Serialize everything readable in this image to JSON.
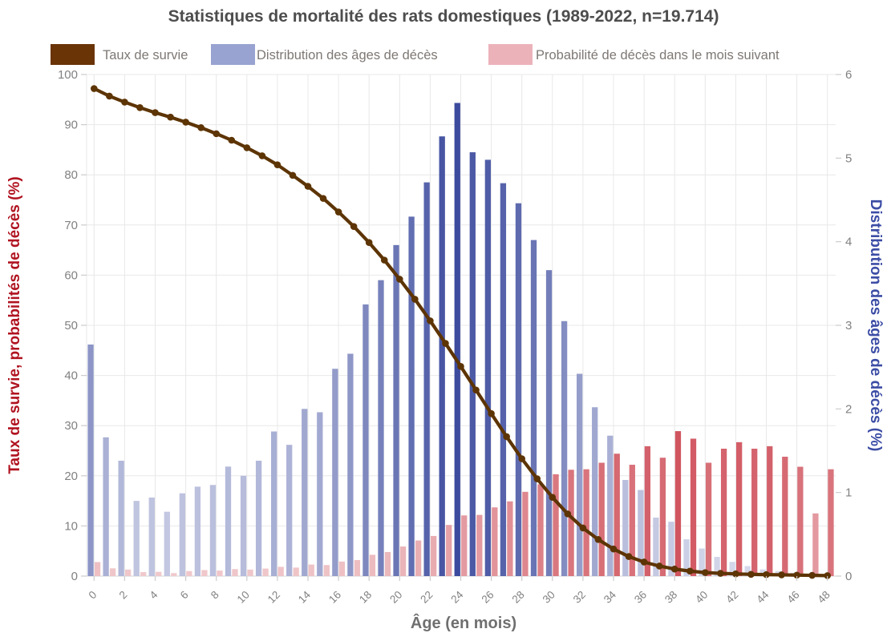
{
  "title": "Statistiques de mortalité des rats domestiques (1989-2022, n=19.714)",
  "legend": [
    {
      "label": "Taux de survie",
      "swatch_color": "#6a3407"
    },
    {
      "label": "Distribution des âges de décès",
      "swatch_color": "#99a3d1"
    },
    {
      "label": "Probabilité de décès dans le mois suivant",
      "swatch_color": "#ecb2ba"
    }
  ],
  "axes": {
    "left": {
      "label": "Taux de survie, probabilités de décès (%)",
      "color": "#b01320",
      "ticks": [
        0,
        10,
        20,
        30,
        40,
        50,
        60,
        70,
        80,
        90,
        100
      ]
    },
    "right": {
      "label": "Distribution des âges de décès (%)",
      "color": "#3c4da5",
      "ticks": [
        0,
        1,
        2,
        3,
        4,
        5,
        6
      ]
    },
    "x": {
      "label": "Âge (en mois)",
      "color": "#6f6f6f",
      "ticks": [
        0,
        2,
        4,
        6,
        8,
        10,
        12,
        14,
        16,
        18,
        20,
        22,
        24,
        26,
        28,
        30,
        32,
        34,
        36,
        38,
        40,
        42,
        44,
        46,
        48
      ]
    }
  },
  "colors": {
    "title": "#4d4d4d",
    "tick_text": "#818181",
    "grid": "#e8e8e8",
    "baseline": "#d5d5d5",
    "legend_text": "#7e7874",
    "survival_line": "#5d3404",
    "distribution_full": "#3c4b9e",
    "death_prob_full": "#d0555f"
  },
  "chart_data": {
    "type": "composite (line + grouped bars)",
    "title": "Statistiques de mortalité des rats domestiques (1989-2022, n=19.714)",
    "xlabel": "Âge (en mois)",
    "ylabel_left": "Taux de survie, probabilités de décès (%)",
    "ylabel_right": "Distribution des âges de décès (%)",
    "ylim_left": [
      0,
      100
    ],
    "ylim_right": [
      0,
      6
    ],
    "grid": true,
    "legend_position": "top",
    "months": [
      0,
      1,
      2,
      3,
      4,
      5,
      6,
      7,
      8,
      9,
      10,
      11,
      12,
      13,
      14,
      15,
      16,
      17,
      18,
      19,
      20,
      21,
      22,
      23,
      24,
      25,
      26,
      27,
      28,
      29,
      30,
      31,
      32,
      33,
      34,
      35,
      36,
      37,
      38,
      39,
      40,
      41,
      42,
      43,
      44,
      45,
      46,
      47,
      48
    ],
    "series": [
      {
        "name": "Taux de survie",
        "type": "line",
        "axis": "left",
        "unit": "%",
        "values": [
          97.2,
          95.7,
          94.5,
          93.4,
          92.4,
          91.5,
          90.5,
          89.4,
          88.2,
          86.9,
          85.4,
          83.8,
          82.0,
          79.9,
          77.7,
          75.3,
          72.6,
          69.7,
          66.5,
          63.0,
          59.2,
          55.2,
          50.9,
          46.4,
          41.8,
          37.1,
          32.4,
          27.8,
          23.4,
          19.4,
          15.7,
          12.4,
          9.6,
          7.3,
          5.4,
          3.9,
          2.8,
          2.0,
          1.4,
          1.0,
          0.7,
          0.55,
          0.45,
          0.35,
          0.3,
          0.25,
          0.2,
          0.15,
          0.1
        ]
      },
      {
        "name": "Distribution des âges de décès",
        "type": "bar",
        "axis": "right",
        "unit": "%",
        "values": [
          2.77,
          1.66,
          1.38,
          0.9,
          0.94,
          0.77,
          0.99,
          1.07,
          1.09,
          1.31,
          1.2,
          1.38,
          1.73,
          1.57,
          2.0,
          1.96,
          2.48,
          2.66,
          3.25,
          3.54,
          3.96,
          4.3,
          4.71,
          5.26,
          5.66,
          5.07,
          4.98,
          4.7,
          4.46,
          4.02,
          3.66,
          3.05,
          2.42,
          2.02,
          1.68,
          1.15,
          1.03,
          0.7,
          0.65,
          0.44,
          0.33,
          0.23,
          0.17,
          0.12,
          0.08,
          0.06,
          0.04,
          0.03,
          0.02
        ]
      },
      {
        "name": "Probabilité de décès dans le mois suivant",
        "type": "bar",
        "axis": "left",
        "unit": "%",
        "values": [
          2.8,
          1.55,
          1.3,
          0.8,
          0.85,
          0.6,
          1.0,
          1.2,
          1.1,
          1.4,
          1.3,
          1.5,
          1.85,
          1.7,
          2.3,
          2.2,
          2.9,
          3.2,
          4.25,
          4.8,
          5.9,
          7.1,
          8.0,
          10.2,
          12.1,
          12.2,
          13.7,
          14.9,
          16.8,
          18.3,
          20.3,
          21.2,
          21.3,
          22.6,
          24.4,
          22.2,
          25.9,
          23.6,
          28.9,
          27.4,
          22.6,
          25.4,
          26.7,
          25.4,
          25.9,
          23.8,
          21.8,
          12.5,
          21.3
        ]
      }
    ]
  }
}
